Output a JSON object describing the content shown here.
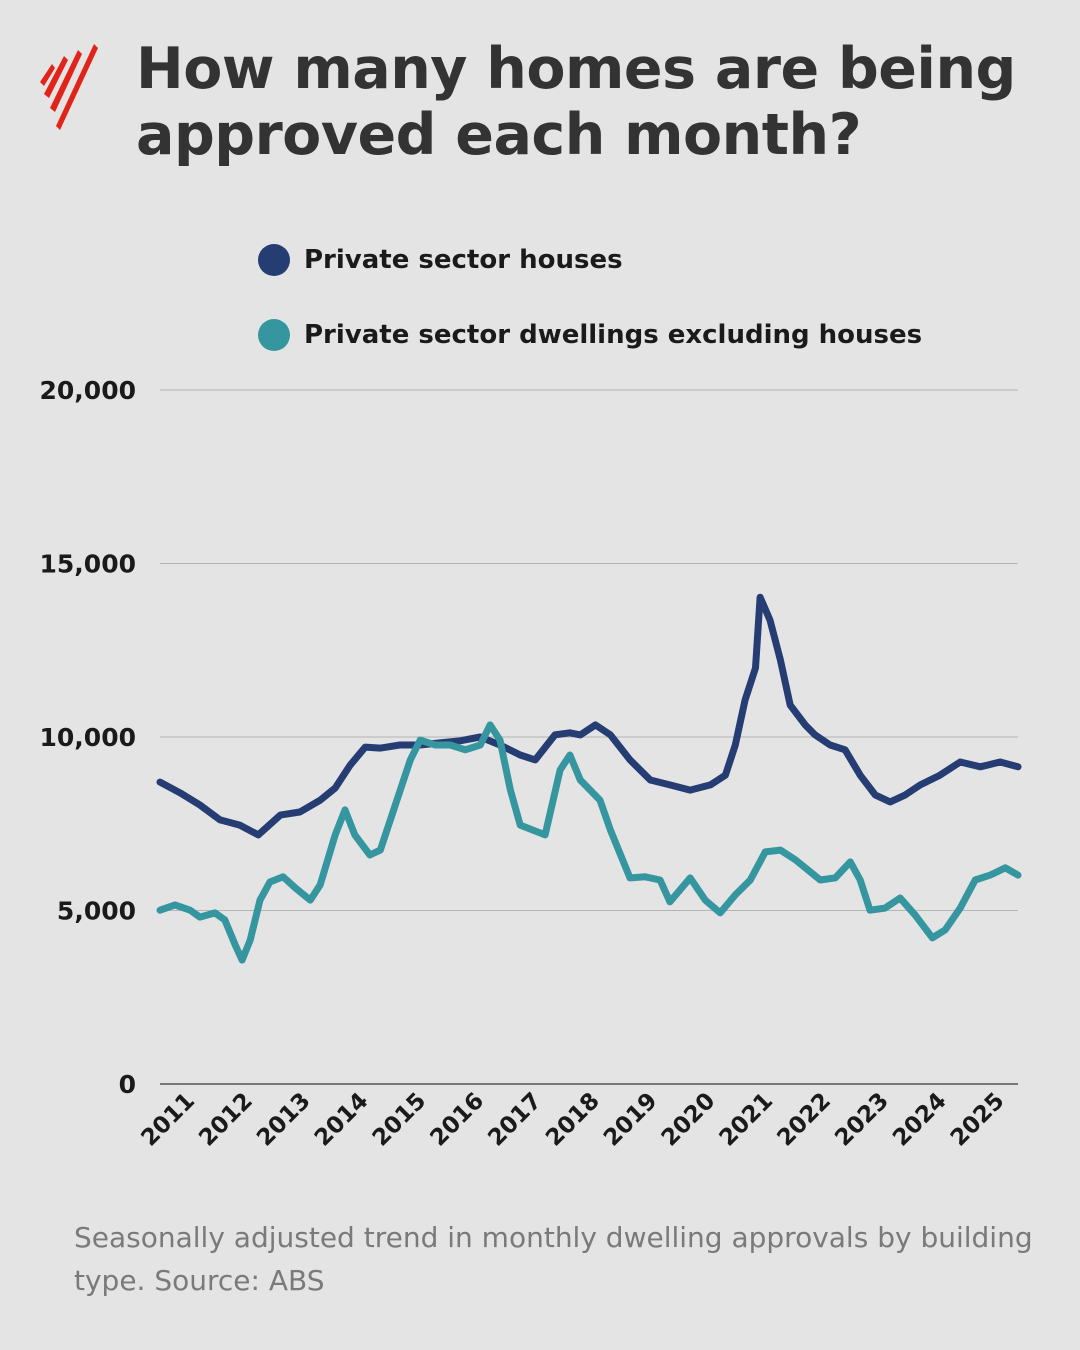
{
  "brand": {
    "logo": "SBS",
    "color": "#e2231a"
  },
  "title": "How many homes are being approved each month?",
  "caption": "Seasonally adjusted trend in monthly dwelling approvals by building type. Source: ABS",
  "chart_data": {
    "type": "line",
    "title": "How many homes are being approved each month?",
    "xlabel": "",
    "ylabel": "",
    "xlim": [
      2011.0,
      2025.84
    ],
    "ylim": [
      0,
      20000
    ],
    "yticks": [
      0,
      5000,
      10000,
      15000,
      20000
    ],
    "ytick_labels": [
      "0",
      "5,000",
      "10,000",
      "15,000",
      "20,000"
    ],
    "xtick_labels": [
      "2011",
      "2012",
      "2013",
      "2014",
      "2015",
      "2016",
      "2017",
      "2018",
      "2019",
      "2020",
      "2021",
      "2022",
      "2023",
      "2024",
      "2025"
    ],
    "grid": "horizontal",
    "legend_placement": "top",
    "series": [
      {
        "name": "Private sector houses",
        "color": "#253d72",
        "points": [
          [
            2011.0,
            8700
          ],
          [
            2011.35,
            8390
          ],
          [
            2011.69,
            8040
          ],
          [
            2012.04,
            7610
          ],
          [
            2012.38,
            7460
          ],
          [
            2012.7,
            7180
          ],
          [
            2013.08,
            7750
          ],
          [
            2013.42,
            7840
          ],
          [
            2013.77,
            8180
          ],
          [
            2014.03,
            8530
          ],
          [
            2014.29,
            9190
          ],
          [
            2014.55,
            9710
          ],
          [
            2014.81,
            9680
          ],
          [
            2015.15,
            9770
          ],
          [
            2015.5,
            9770
          ],
          [
            2015.84,
            9830
          ],
          [
            2016.19,
            9890
          ],
          [
            2016.54,
            10000
          ],
          [
            2016.88,
            9770
          ],
          [
            2017.23,
            9480
          ],
          [
            2017.49,
            9340
          ],
          [
            2017.83,
            10060
          ],
          [
            2018.09,
            10120
          ],
          [
            2018.27,
            10060
          ],
          [
            2018.53,
            10350
          ],
          [
            2018.79,
            10060
          ],
          [
            2019.13,
            9340
          ],
          [
            2019.48,
            8760
          ],
          [
            2019.82,
            8620
          ],
          [
            2020.17,
            8470
          ],
          [
            2020.52,
            8620
          ],
          [
            2020.78,
            8900
          ],
          [
            2020.95,
            9770
          ],
          [
            2021.12,
            11070
          ],
          [
            2021.3,
            11990
          ],
          [
            2021.38,
            14030
          ],
          [
            2021.55,
            13370
          ],
          [
            2021.73,
            12220
          ],
          [
            2021.9,
            10920
          ],
          [
            2022.16,
            10350
          ],
          [
            2022.33,
            10060
          ],
          [
            2022.59,
            9770
          ],
          [
            2022.85,
            9630
          ],
          [
            2023.11,
            8900
          ],
          [
            2023.37,
            8330
          ],
          [
            2023.63,
            8130
          ],
          [
            2023.89,
            8330
          ],
          [
            2024.15,
            8620
          ],
          [
            2024.49,
            8900
          ],
          [
            2024.84,
            9280
          ],
          [
            2025.19,
            9140
          ],
          [
            2025.53,
            9280
          ],
          [
            2025.84,
            9140
          ]
        ]
      },
      {
        "name": "Private sector dwellings excluding houses",
        "color": "#3596a0",
        "points": [
          [
            2011.0,
            5010
          ],
          [
            2011.26,
            5160
          ],
          [
            2011.52,
            5010
          ],
          [
            2011.69,
            4810
          ],
          [
            2011.95,
            4930
          ],
          [
            2012.12,
            4730
          ],
          [
            2012.3,
            4010
          ],
          [
            2012.42,
            3570
          ],
          [
            2012.56,
            4150
          ],
          [
            2012.73,
            5300
          ],
          [
            2012.9,
            5820
          ],
          [
            2013.13,
            5970
          ],
          [
            2013.34,
            5650
          ],
          [
            2013.6,
            5300
          ],
          [
            2013.77,
            5740
          ],
          [
            2014.03,
            7180
          ],
          [
            2014.2,
            7900
          ],
          [
            2014.37,
            7180
          ],
          [
            2014.63,
            6600
          ],
          [
            2014.81,
            6740
          ],
          [
            2015.07,
            8040
          ],
          [
            2015.33,
            9340
          ],
          [
            2015.5,
            9910
          ],
          [
            2015.76,
            9770
          ],
          [
            2016.02,
            9770
          ],
          [
            2016.28,
            9630
          ],
          [
            2016.54,
            9770
          ],
          [
            2016.71,
            10350
          ],
          [
            2016.88,
            9910
          ],
          [
            2017.06,
            8470
          ],
          [
            2017.23,
            7460
          ],
          [
            2017.66,
            7180
          ],
          [
            2017.92,
            9050
          ],
          [
            2018.09,
            9480
          ],
          [
            2018.27,
            8760
          ],
          [
            2018.61,
            8180
          ],
          [
            2018.79,
            7320
          ],
          [
            2019.13,
            5940
          ],
          [
            2019.39,
            5970
          ],
          [
            2019.65,
            5880
          ],
          [
            2019.82,
            5250
          ],
          [
            2020.17,
            5940
          ],
          [
            2020.43,
            5300
          ],
          [
            2020.69,
            4930
          ],
          [
            2020.95,
            5450
          ],
          [
            2021.21,
            5880
          ],
          [
            2021.47,
            6690
          ],
          [
            2021.73,
            6740
          ],
          [
            2021.99,
            6460
          ],
          [
            2022.42,
            5880
          ],
          [
            2022.68,
            5940
          ],
          [
            2022.94,
            6400
          ],
          [
            2023.11,
            5880
          ],
          [
            2023.28,
            5010
          ],
          [
            2023.54,
            5070
          ],
          [
            2023.8,
            5360
          ],
          [
            2024.06,
            4870
          ],
          [
            2024.36,
            4210
          ],
          [
            2024.58,
            4440
          ],
          [
            2024.84,
            5070
          ],
          [
            2025.1,
            5880
          ],
          [
            2025.36,
            6020
          ],
          [
            2025.62,
            6230
          ],
          [
            2025.84,
            6020
          ]
        ]
      }
    ]
  }
}
